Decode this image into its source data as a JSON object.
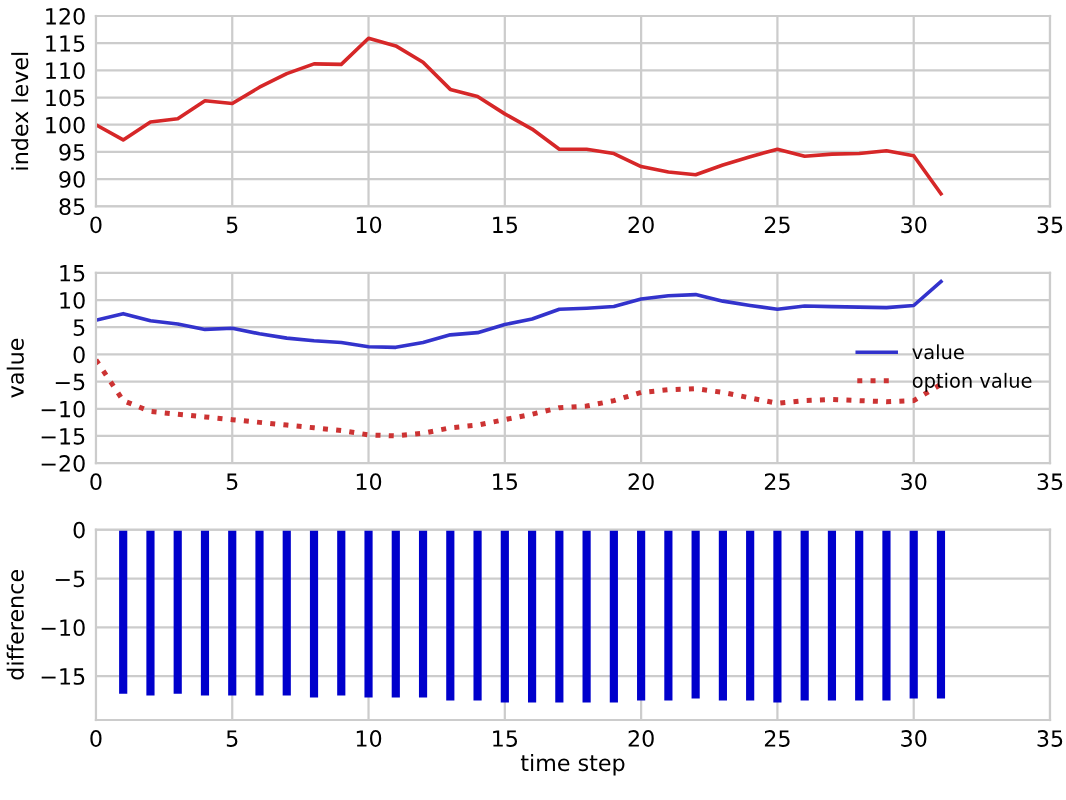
{
  "chart_data": [
    {
      "type": "line",
      "ylabel": "index level",
      "x": [
        0,
        1,
        2,
        3,
        4,
        5,
        6,
        7,
        8,
        9,
        10,
        11,
        12,
        13,
        14,
        15,
        16,
        17,
        18,
        19,
        20,
        21,
        22,
        23,
        24,
        25,
        26,
        27,
        28,
        29,
        30,
        31
      ],
      "series": [
        {
          "color": "#d62728",
          "values": [
            100,
            97.2,
            100.5,
            101.1,
            104.4,
            103.9,
            106.9,
            109.4,
            111.2,
            111.1,
            115.9,
            114.5,
            111.5,
            106.5,
            105.2,
            102,
            99.2,
            95.5,
            95.5,
            94.7,
            92.3,
            91.3,
            90.8,
            92.6,
            94.1,
            95.5,
            94.2,
            94.6,
            94.7,
            95.2,
            94.3,
            87.3
          ]
        }
      ],
      "xlim": [
        0,
        35
      ],
      "xticks": [
        0,
        5,
        10,
        15,
        20,
        25,
        30,
        35
      ],
      "ylim": [
        85,
        120
      ],
      "yticks": [
        85,
        90,
        95,
        100,
        105,
        110,
        115,
        120
      ],
      "grid": true
    },
    {
      "type": "line",
      "ylabel": "value",
      "x": [
        0,
        1,
        2,
        3,
        4,
        5,
        6,
        7,
        8,
        9,
        10,
        11,
        12,
        13,
        14,
        15,
        16,
        17,
        18,
        19,
        20,
        21,
        22,
        23,
        24,
        25,
        26,
        27,
        28,
        29,
        30,
        31
      ],
      "series": [
        {
          "name": "value",
          "color": "#3333cc",
          "line_style": "solid",
          "values": [
            6.3,
            7.5,
            6.2,
            5.6,
            4.6,
            4.8,
            3.8,
            3.0,
            2.5,
            2.2,
            1.4,
            1.3,
            2.2,
            3.6,
            4.0,
            5.5,
            6.5,
            8.3,
            8.5,
            8.8,
            10.2,
            10.8,
            11.0,
            9.8,
            9.0,
            8.3,
            8.9,
            8.8,
            8.7,
            8.6,
            9.0,
            13.4
          ]
        },
        {
          "name": "option value",
          "color": "#cc3333",
          "line_style": "dotted",
          "values": [
            -1,
            -8.5,
            -10.5,
            -11,
            -11.5,
            -12,
            -12.5,
            -13,
            -13.5,
            -14,
            -14.8,
            -15,
            -14.5,
            -13.5,
            -13,
            -12,
            -11,
            -9.8,
            -9.5,
            -8.5,
            -7,
            -6.5,
            -6.3,
            -7,
            -8,
            -9,
            -8.5,
            -8.3,
            -8.5,
            -8.7,
            -8.5,
            -5.5
          ]
        }
      ],
      "xlim": [
        0,
        35
      ],
      "xticks": [
        0,
        5,
        10,
        15,
        20,
        25,
        30,
        35
      ],
      "ylim": [
        -20,
        15
      ],
      "yticks": [
        -20,
        -15,
        -10,
        -5,
        0,
        5,
        10,
        15
      ],
      "grid": true,
      "legend": "right"
    },
    {
      "type": "bar",
      "xlabel": "time step",
      "ylabel": "difference",
      "x": [
        1,
        2,
        3,
        4,
        5,
        6,
        7,
        8,
        9,
        10,
        11,
        12,
        13,
        14,
        15,
        16,
        17,
        18,
        19,
        20,
        21,
        22,
        23,
        24,
        25,
        26,
        27,
        28,
        29,
        30,
        31
      ],
      "series": [
        {
          "color": "#0000cc",
          "values": [
            -16.8,
            -17,
            -16.8,
            -17,
            -17,
            -17,
            -17,
            -17.2,
            -17,
            -17.2,
            -17.2,
            -17.2,
            -17.5,
            -17.5,
            -17.7,
            -17.7,
            -17.7,
            -17.7,
            -17.7,
            -17.5,
            -17.5,
            -17.3,
            -17.5,
            -17.5,
            -17.7,
            -17.5,
            -17.5,
            -17.5,
            -17.5,
            -17.3,
            -17.3
          ]
        }
      ],
      "xlim": [
        0,
        35
      ],
      "xticks": [
        0,
        5,
        10,
        15,
        20,
        25,
        30,
        35
      ],
      "ylim": [
        -19.5,
        0
      ],
      "yticks": [
        -15,
        -10,
        -5,
        0
      ],
      "grid": true
    }
  ]
}
